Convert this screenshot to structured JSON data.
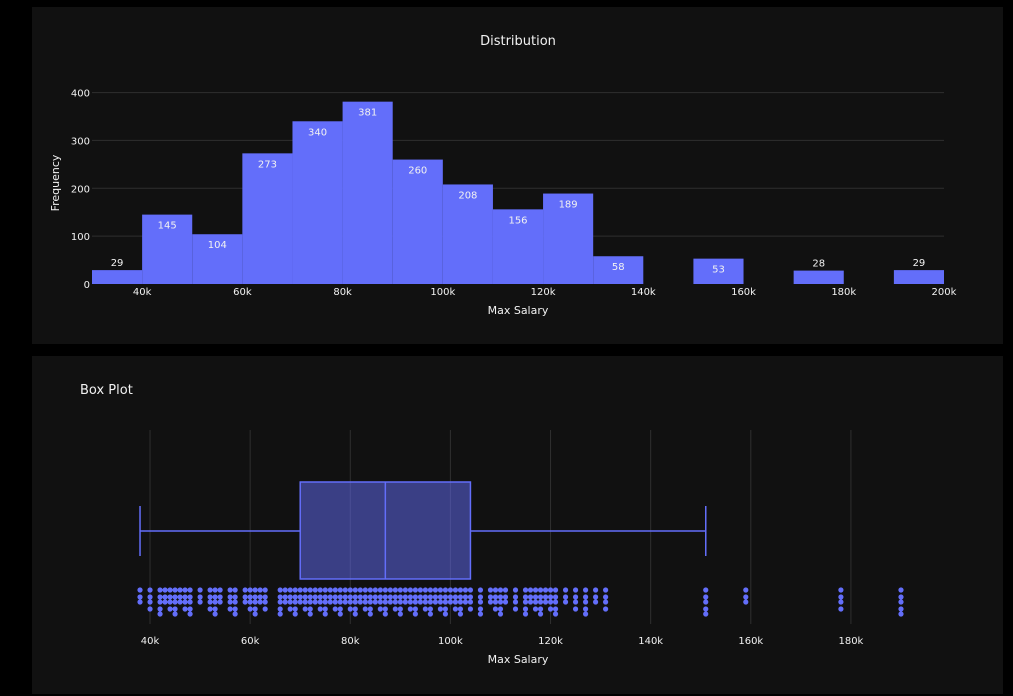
{
  "colors": {
    "page_bg": "#000000",
    "panel_bg": "#111111",
    "grid": "#2f2f2f",
    "bar": "#636efa",
    "box_fill": "#3a3f8f",
    "text": "#f2f2f2"
  },
  "chart_data": [
    {
      "type": "bar",
      "title": "Distribution",
      "xlabel": "Max Salary",
      "ylabel": "Frequency",
      "bin_width": 10000,
      "bins": [
        {
          "start": 30000,
          "end": 40000,
          "count": 29
        },
        {
          "start": 40000,
          "end": 50000,
          "count": 145
        },
        {
          "start": 50000,
          "end": 60000,
          "count": 104
        },
        {
          "start": 60000,
          "end": 70000,
          "count": 273
        },
        {
          "start": 70000,
          "end": 80000,
          "count": 340
        },
        {
          "start": 80000,
          "end": 90000,
          "count": 381
        },
        {
          "start": 90000,
          "end": 100000,
          "count": 260
        },
        {
          "start": 100000,
          "end": 110000,
          "count": 208
        },
        {
          "start": 110000,
          "end": 120000,
          "count": 156
        },
        {
          "start": 120000,
          "end": 130000,
          "count": 189
        },
        {
          "start": 130000,
          "end": 140000,
          "count": 58
        },
        {
          "start": 150000,
          "end": 160000,
          "count": 53
        },
        {
          "start": 170000,
          "end": 180000,
          "count": 28
        },
        {
          "start": 190000,
          "end": 200000,
          "count": 29
        }
      ],
      "xlim": [
        30000,
        200000
      ],
      "ylim": [
        0,
        420
      ],
      "x_ticks": [
        40000,
        60000,
        80000,
        100000,
        120000,
        140000,
        160000,
        180000,
        200000
      ],
      "x_tick_labels": [
        "40k",
        "60k",
        "80k",
        "100k",
        "120k",
        "140k",
        "160k",
        "180k",
        "200k"
      ],
      "y_ticks": [
        0,
        100,
        200,
        300,
        400
      ],
      "y_tick_labels": [
        "0",
        "100",
        "200",
        "300",
        "400"
      ],
      "grid": true
    },
    {
      "type": "box",
      "title": "Box Plot",
      "xlabel": "Max Salary",
      "box": {
        "lower_fence": 38000,
        "q1": 70000,
        "median": 87000,
        "q3": 104000,
        "upper_fence": 151000
      },
      "xlim": [
        35000,
        192000
      ],
      "x_ticks": [
        40000,
        60000,
        80000,
        100000,
        120000,
        140000,
        160000,
        180000
      ],
      "x_tick_labels": [
        "40k",
        "60k",
        "80k",
        "100k",
        "120k",
        "140k",
        "160k",
        "180k"
      ],
      "points_x": [
        38000,
        40000,
        42000,
        43000,
        44000,
        45000,
        46000,
        47000,
        48000,
        50000,
        52000,
        53000,
        54000,
        56000,
        57000,
        59000,
        60000,
        61000,
        62000,
        63000,
        66000,
        67000,
        68000,
        69000,
        70000,
        71000,
        72000,
        73000,
        74000,
        75000,
        76000,
        77000,
        78000,
        79000,
        80000,
        81000,
        82000,
        83000,
        84000,
        85000,
        86000,
        87000,
        88000,
        89000,
        90000,
        91000,
        92000,
        93000,
        94000,
        95000,
        96000,
        97000,
        98000,
        99000,
        100000,
        101000,
        102000,
        103000,
        104000,
        106000,
        108000,
        109000,
        110000,
        111000,
        113000,
        115000,
        116000,
        117000,
        118000,
        119000,
        120000,
        121000,
        123000,
        125000,
        127000,
        129000,
        131000,
        151000,
        159000,
        178000,
        190000
      ],
      "points_y": [],
      "grid": true
    }
  ]
}
